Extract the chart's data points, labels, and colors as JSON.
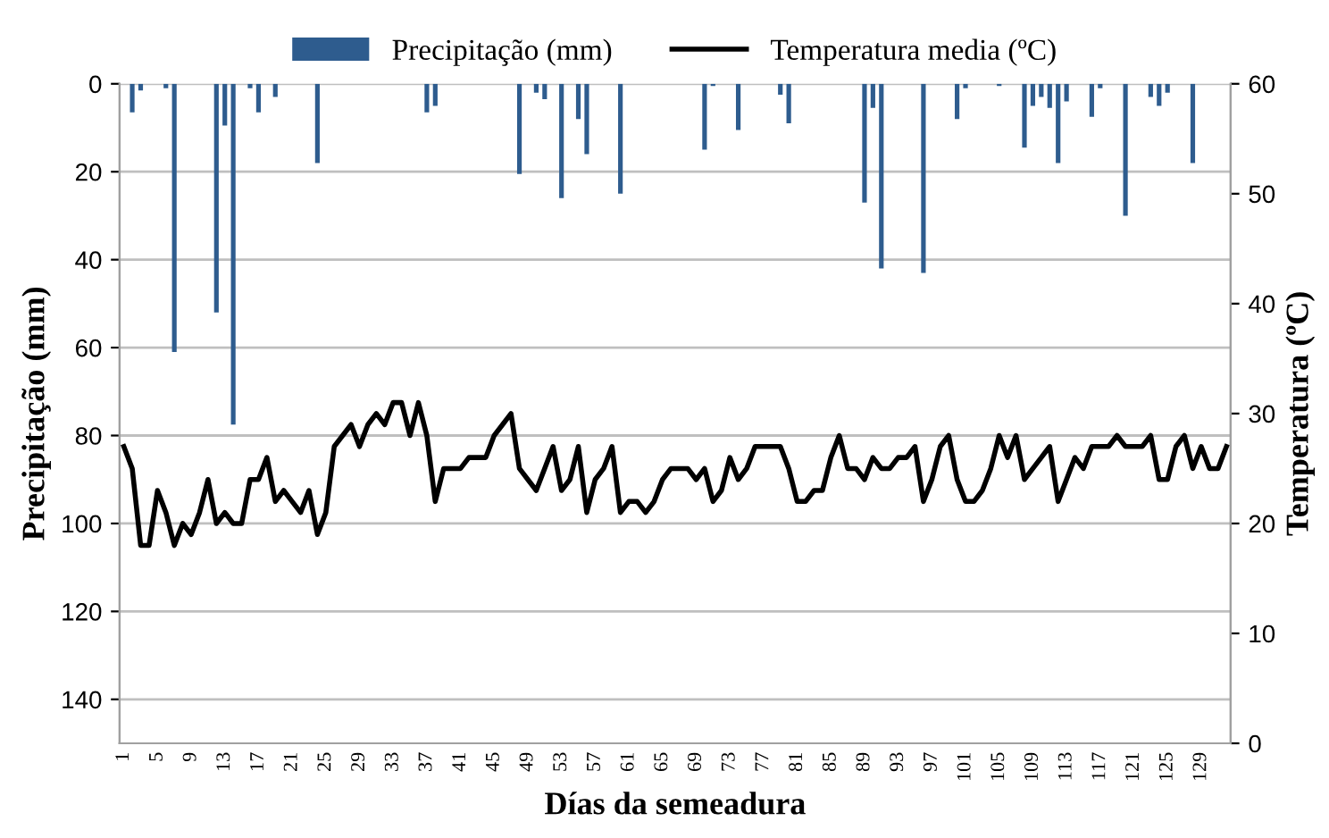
{
  "chart_data": {
    "type": "bar",
    "xlabel": "Días da semeadura",
    "ylabel": "Precipitação (mm)",
    "y2label": "Temperatura (ºC)",
    "categories": [
      "1",
      null,
      null,
      null,
      "5",
      null,
      null,
      null,
      "9",
      null,
      null,
      null,
      "13",
      null,
      null,
      null,
      "17",
      null,
      null,
      null,
      "21",
      null,
      null,
      null,
      "25",
      null,
      null,
      null,
      "29",
      null,
      null,
      null,
      "33",
      null,
      null,
      null,
      "37",
      null,
      null,
      null,
      "41",
      null,
      null,
      null,
      "45",
      null,
      null,
      null,
      "49",
      null,
      null,
      null,
      "53",
      null,
      null,
      null,
      "57",
      null,
      null,
      null,
      "61",
      null,
      null,
      null,
      "65",
      null,
      null,
      null,
      "69",
      null,
      null,
      null,
      "73",
      null,
      null,
      null,
      "77",
      null,
      null,
      null,
      "81",
      null,
      null,
      null,
      "85",
      null,
      null,
      null,
      "89",
      null,
      null,
      null,
      "93",
      null,
      null,
      null,
      "97",
      null,
      null,
      null,
      "101",
      null,
      null,
      null,
      "105",
      null,
      null,
      null,
      "109",
      null,
      null,
      null,
      "113",
      null,
      null,
      null,
      "117",
      null,
      null,
      null,
      "121",
      null,
      null,
      null,
      "125",
      null,
      null,
      null,
      "129",
      null,
      null,
      null
    ],
    "series": [
      {
        "name": "Precipitação (mm)",
        "color": "#2e5c8e",
        "values": [
          0,
          6.5,
          1.5,
          0,
          0,
          1,
          61,
          0,
          0,
          0,
          0,
          52,
          9.5,
          77.5,
          0,
          1,
          6.5,
          0,
          3,
          0,
          0,
          0,
          0,
          18,
          0,
          0,
          0,
          0,
          0,
          0,
          0,
          0,
          0,
          0,
          0,
          0,
          6.5,
          5,
          0,
          0,
          0,
          0,
          0,
          0,
          0,
          0,
          0,
          20.5,
          0,
          2,
          3.5,
          0,
          26,
          0,
          8,
          16,
          0,
          0,
          0,
          25,
          0,
          0,
          0,
          0,
          0,
          0,
          0,
          0,
          0,
          15,
          0.5,
          0,
          0,
          10.5,
          0,
          0,
          0,
          0,
          2.5,
          9,
          0,
          0,
          0,
          0,
          0,
          0,
          0,
          0,
          27,
          5.5,
          42,
          0,
          0,
          0,
          0,
          43,
          0,
          0,
          0,
          8,
          1,
          0,
          0,
          0,
          0.5,
          0,
          0,
          14.5,
          5,
          3,
          5.5,
          18,
          4,
          0,
          0,
          7.5,
          1,
          0,
          0,
          30,
          0,
          0,
          3,
          5,
          2,
          0,
          0,
          18,
          0,
          0,
          0,
          0
        ]
      },
      {
        "name": "Temperatura media (ºC)",
        "type": "line",
        "axis": "y2",
        "color": "#000000",
        "values": [
          27,
          25,
          18,
          18,
          23,
          21,
          18,
          20,
          19,
          21,
          24,
          20,
          21,
          20,
          20,
          24,
          24,
          26,
          22,
          23,
          22,
          21,
          23,
          19,
          21,
          27,
          28,
          29,
          27,
          29,
          30,
          29,
          31,
          31,
          28,
          31,
          28,
          22,
          25,
          25,
          25,
          26,
          26,
          26,
          28,
          29,
          30,
          25,
          24,
          23,
          25,
          27,
          23,
          24,
          27,
          21,
          24,
          25,
          27,
          21,
          22,
          22,
          21,
          22,
          24,
          25,
          25,
          25,
          24,
          25,
          22,
          23,
          26,
          24,
          25,
          27,
          27,
          27,
          27,
          25,
          22,
          22,
          23,
          23,
          26,
          28,
          25,
          25,
          24,
          26,
          25,
          25,
          26,
          26,
          27,
          22,
          24,
          27,
          28,
          24,
          22,
          22,
          23,
          25,
          28,
          26,
          28,
          24,
          25,
          26,
          27,
          22,
          24,
          26,
          25,
          27,
          27,
          27,
          28,
          27,
          27,
          27,
          28,
          24,
          24,
          27,
          28,
          25,
          27,
          25,
          25,
          27
        ]
      }
    ],
    "ylim": [
      150,
      0
    ],
    "yticks": [
      0,
      20,
      40,
      60,
      80,
      100,
      120,
      140
    ],
    "y2lim": [
      0,
      60
    ],
    "y2ticks": [
      0,
      10,
      20,
      30,
      40,
      50,
      60
    ],
    "grid": "y",
    "legend": "top"
  }
}
